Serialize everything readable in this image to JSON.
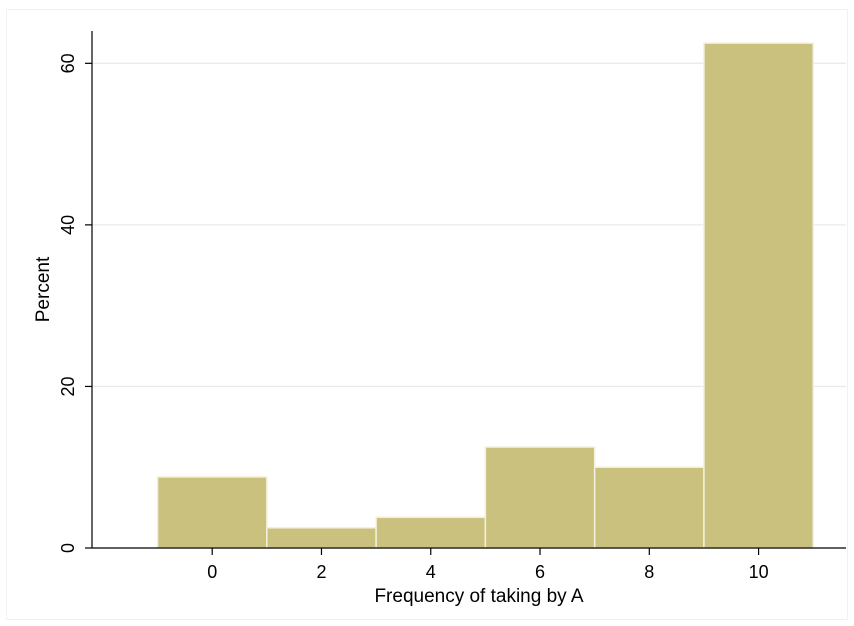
{
  "chart_data": {
    "type": "bar",
    "title": "",
    "xlabel": "Frequency of taking by A",
    "ylabel": "Percent",
    "xlim": [
      -2.2,
      11.6
    ],
    "ylim": [
      0,
      64
    ],
    "xticks": [
      "0",
      "2",
      "4",
      "6",
      "8",
      "10"
    ],
    "xtick_values": [
      0,
      2,
      4,
      6,
      8,
      10
    ],
    "yticks": [
      "0",
      "20",
      "40",
      "60"
    ],
    "ytick_values": [
      0,
      20,
      40,
      60
    ],
    "grid": true,
    "bar_color": "#cbc17f",
    "bar_edge_color": "#f3f0da",
    "bins": [
      {
        "x0": -1,
        "x1": 1,
        "value": 8.8
      },
      {
        "x0": 1,
        "x1": 3,
        "value": 2.5
      },
      {
        "x0": 3,
        "x1": 5,
        "value": 3.8
      },
      {
        "x0": 5,
        "x1": 7,
        "value": 12.5
      },
      {
        "x0": 7,
        "x1": 9,
        "value": 10.0
      },
      {
        "x0": 9,
        "x1": 11,
        "value": 62.5
      }
    ]
  }
}
